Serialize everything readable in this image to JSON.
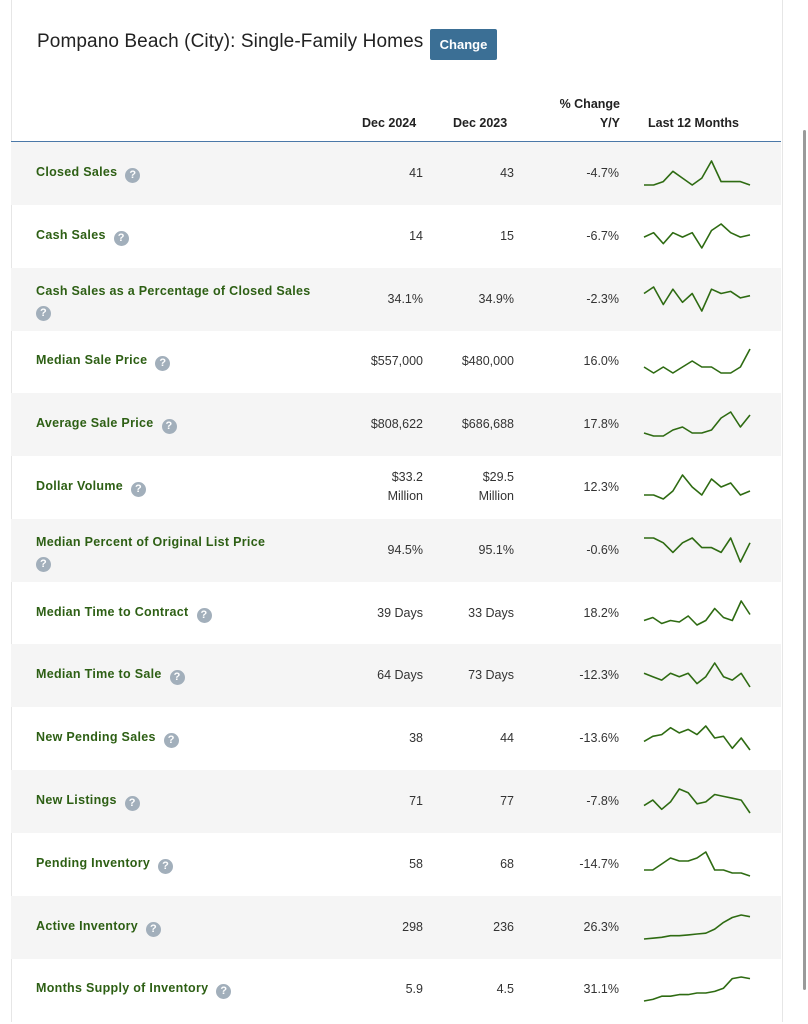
{
  "header": {
    "title": "Pompano Beach (City): Single-Family Homes",
    "change_label": "Change"
  },
  "columns": {
    "col1": "Dec 2024",
    "col2": "Dec 2023",
    "col3_line1": "% Change",
    "col3_line2": "Y/Y",
    "col4": "Last 12 Months"
  },
  "help_glyph": "?",
  "rows": [
    {
      "label": "Closed Sales",
      "dec2024": "41",
      "dec2023": "43",
      "change": "-4.7%",
      "trend": [
        40,
        40,
        41,
        44,
        42,
        40,
        42,
        47,
        41,
        41,
        41,
        40
      ]
    },
    {
      "label": "Cash Sales",
      "dec2024": "14",
      "dec2023": "15",
      "change": "-6.7%",
      "trend": [
        14,
        16,
        11,
        16,
        14,
        16,
        9,
        17,
        20,
        16,
        14,
        15
      ]
    },
    {
      "label": "Cash Sales as a Percentage of Closed Sales",
      "dec2024": "34.1%",
      "dec2023": "34.9%",
      "change": "-2.3%",
      "trend": [
        36,
        39,
        31,
        38,
        32,
        36,
        28,
        38,
        36,
        37,
        34,
        35
      ]
    },
    {
      "label": "Median Sale Price",
      "dec2024": "$557,000",
      "dec2023": "$480,000",
      "change": "16.0%",
      "trend": [
        52,
        51,
        52,
        51,
        52,
        53,
        52,
        52,
        51,
        51,
        52,
        55
      ]
    },
    {
      "label": "Average Sale Price",
      "dec2024": "$808,622",
      "dec2023": "$686,688",
      "change": "17.8%",
      "trend": [
        69,
        68,
        68,
        70,
        71,
        69,
        69,
        70,
        74,
        76,
        71,
        75
      ]
    },
    {
      "label": "Dollar Volume",
      "dec2024": "$33.2\nMillion",
      "dec2023": "$29.5\nMillion",
      "change": "12.3%",
      "trend": [
        30,
        30,
        29,
        31,
        35,
        32,
        30,
        34,
        32,
        33,
        30,
        31
      ]
    },
    {
      "label": "Median Percent of Original List Price",
      "dec2024": "94.5%",
      "dec2023": "95.1%",
      "change": "-0.6%",
      "trend": [
        96,
        96,
        95,
        93,
        95,
        96,
        94,
        94,
        93,
        96,
        91,
        95
      ]
    },
    {
      "label": "Median Time to Contract",
      "dec2024": "39 Days",
      "dec2023": "33 Days",
      "change": "18.2%",
      "trend": [
        33,
        35,
        31,
        33,
        32,
        36,
        30,
        33,
        41,
        35,
        33,
        46,
        37
      ]
    },
    {
      "label": "Median Time to Sale",
      "dec2024": "64 Days",
      "dec2023": "73 Days",
      "change": "-12.3%",
      "trend": [
        73,
        72,
        71,
        73,
        72,
        73,
        70,
        72,
        76,
        72,
        71,
        73,
        69
      ]
    },
    {
      "label": "New Pending Sales",
      "dec2024": "38",
      "dec2023": "44",
      "change": "-13.6%",
      "trend": [
        44,
        47,
        48,
        52,
        49,
        51,
        48,
        53,
        46,
        47,
        40,
        46,
        39
      ]
    },
    {
      "label": "New Listings",
      "dec2024": "71",
      "dec2023": "77",
      "change": "-7.8%",
      "trend": [
        77,
        80,
        75,
        79,
        86,
        84,
        78,
        79,
        83,
        82,
        81,
        80,
        73
      ]
    },
    {
      "label": "Pending Inventory",
      "dec2024": "58",
      "dec2023": "68",
      "change": "-14.7%",
      "trend": [
        58,
        58,
        60,
        62,
        61,
        61,
        62,
        64,
        58,
        58,
        57,
        57,
        56
      ]
    },
    {
      "label": "Active Inventory",
      "dec2024": "298",
      "dec2023": "236",
      "change": "26.3%",
      "trend": [
        236,
        237,
        238,
        240,
        240,
        241,
        242,
        243,
        248,
        256,
        262,
        265,
        263
      ]
    },
    {
      "label": "Months Supply of Inventory",
      "dec2024": "5.9",
      "dec2023": "4.5",
      "change": "31.1%",
      "trend": [
        4.5,
        4.6,
        4.8,
        4.8,
        4.9,
        4.9,
        5.0,
        5.0,
        5.1,
        5.3,
        5.9,
        6.0,
        5.9
      ]
    }
  ],
  "colors": {
    "label": "#2d5f14",
    "spark": "#2e6b12",
    "button": "#3b6f95",
    "header_line": "#4a78a8",
    "row_alt": "#f5f5f5"
  }
}
